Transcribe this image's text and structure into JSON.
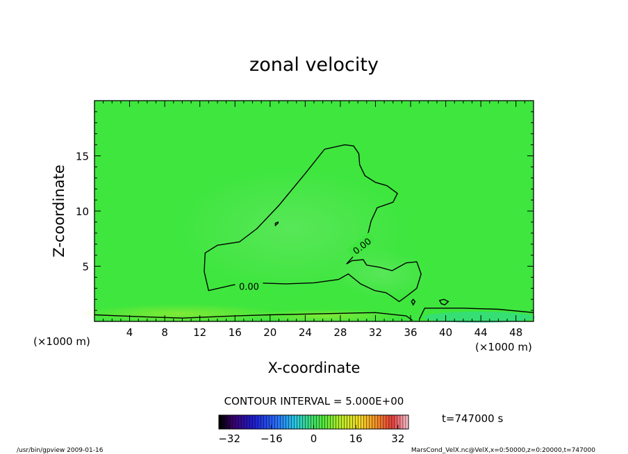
{
  "chart_data": {
    "type": "heatmap",
    "title": "zonal velocity",
    "xlabel": "X-coordinate",
    "ylabel": "Z-coordinate",
    "x_unit": "(×1000 m)",
    "xlim": [
      0,
      50
    ],
    "ylim": [
      0,
      20
    ],
    "xticks": [
      4,
      8,
      12,
      16,
      20,
      24,
      28,
      32,
      36,
      40,
      44,
      48
    ],
    "yticks": [
      5,
      10,
      15
    ],
    "contour_interval_text": "CONTOUR INTERVAL = 5.000E+00",
    "contour_labels": [
      {
        "text": "0.00",
        "x": 17.6,
        "z": 3.1
      },
      {
        "text": "0.00",
        "x": 30.5,
        "z": 6.8
      }
    ],
    "contour_zero_upper": [
      [
        13,
        2.8
      ],
      [
        12.5,
        4.5
      ],
      [
        12.6,
        6.2
      ],
      [
        14,
        6.9
      ],
      [
        16.5,
        7.2
      ],
      [
        18.5,
        8.4
      ],
      [
        21,
        10.5
      ],
      [
        24,
        13.4
      ],
      [
        26.2,
        15.6
      ],
      [
        28.5,
        16
      ],
      [
        29.5,
        15.9
      ],
      [
        30.1,
        15.2
      ],
      [
        30.2,
        14.2
      ],
      [
        30.8,
        13.2
      ],
      [
        32,
        12.6
      ],
      [
        33.3,
        12.3
      ],
      [
        34.5,
        11.6
      ],
      [
        34,
        10.8
      ],
      [
        32.2,
        10.3
      ],
      [
        31.5,
        9.1
      ],
      [
        31.2,
        8.1
      ],
      [
        30.8,
        7.2
      ],
      [
        29.6,
        6
      ],
      [
        28.7,
        5.2
      ],
      [
        29.3,
        5.5
      ],
      [
        30.6,
        5.6
      ],
      [
        31,
        5.1
      ],
      [
        32.5,
        4.9
      ],
      [
        33.9,
        4.6
      ],
      [
        35.5,
        5.3
      ],
      [
        36.7,
        5.4
      ],
      [
        37.2,
        4.3
      ],
      [
        36.7,
        3
      ],
      [
        35.4,
        2.2
      ],
      [
        34.7,
        1.8
      ],
      [
        33.8,
        2.3
      ],
      [
        33.2,
        2.6
      ],
      [
        31.9,
        2.8
      ],
      [
        30.3,
        3.4
      ],
      [
        28.9,
        4.3
      ],
      [
        27.8,
        3.8
      ],
      [
        25,
        3.5
      ],
      [
        21.8,
        3.4
      ],
      [
        18.2,
        3.5
      ],
      [
        15.8,
        3.3
      ],
      [
        13,
        2.8
      ]
    ],
    "contour_zero_small": [
      [
        20.9,
        9
      ],
      [
        20.6,
        8.9
      ],
      [
        20.6,
        8.7
      ],
      [
        20.9,
        8.9
      ],
      [
        20.9,
        9
      ]
    ],
    "contour_zero_surface": [
      [
        0,
        0.6
      ],
      [
        3,
        0.5
      ],
      [
        6,
        0.4
      ],
      [
        10,
        0.3
      ],
      [
        16,
        0.5
      ],
      [
        20,
        0.6
      ],
      [
        26,
        0.7
      ],
      [
        32,
        0.8
      ],
      [
        35.5,
        0.5
      ],
      [
        36.2,
        0.1
      ]
    ],
    "contour_right_surface": [
      [
        37,
        0.2
      ],
      [
        37.6,
        1.2
      ],
      [
        38.5,
        1.2
      ],
      [
        42,
        1.2
      ],
      [
        46,
        1.1
      ],
      [
        50,
        0.8
      ]
    ],
    "contour_blob1": [
      [
        36.3,
        1.5
      ],
      [
        36.1,
        1.8
      ],
      [
        36.3,
        2
      ],
      [
        36.5,
        1.8
      ],
      [
        36.3,
        1.5
      ]
    ],
    "contour_blob2": [
      [
        39.5,
        1.6
      ],
      [
        39.3,
        1.9
      ],
      [
        39.8,
        2
      ],
      [
        40.3,
        1.8
      ],
      [
        39.9,
        1.5
      ],
      [
        39.5,
        1.6
      ]
    ],
    "colorbar": {
      "min": -36,
      "max": 36,
      "tick_values": [
        -32,
        -16,
        0,
        16,
        32
      ],
      "tick_labels": [
        "−32",
        "−16",
        "0",
        "16",
        "32"
      ]
    },
    "time_label": "t=747000 s"
  },
  "footer": {
    "left": "/usr/bin/gpview   2009-01-16",
    "right": "MarsCond_VelX.nc@VelX,x=0:50000,z=0:20000,t=747000"
  }
}
